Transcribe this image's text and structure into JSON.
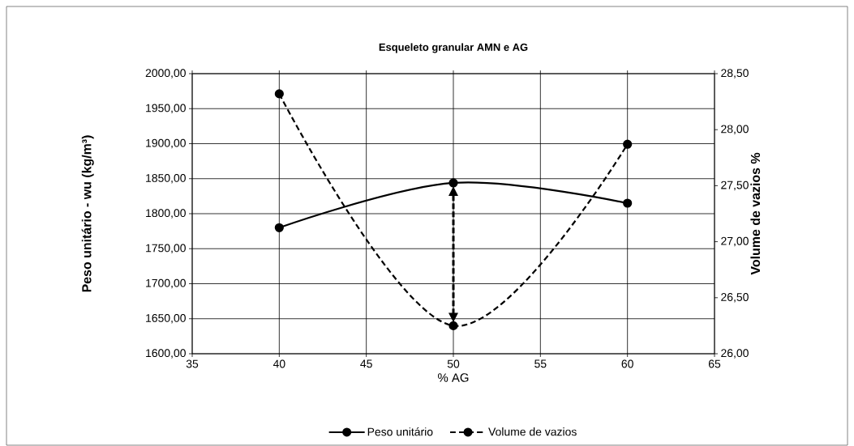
{
  "chart_data": {
    "type": "line",
    "title": "Esqueleto granular AMN e AG",
    "xlabel": "% AG",
    "ylabel": "Peso unitário - wu (kg/m³)",
    "y2label": "Volume de vazios %",
    "x": [
      40,
      50,
      60
    ],
    "series": [
      {
        "name": "Peso unitário",
        "color": "#000000",
        "values": [
          1780,
          1844,
          1815
        ],
        "line_style": "solid"
      },
      {
        "name": "Volume de vazios",
        "color": "#000000",
        "values": [
          28.32,
          26.25,
          27.87
        ],
        "axis": "y2",
        "line_style": "dashed"
      }
    ],
    "xlim": [
      35,
      65
    ],
    "xticks": [
      35,
      40,
      45,
      50,
      55,
      60,
      65
    ],
    "ylim": [
      1600,
      2000
    ],
    "yticks": [
      {
        "value": 1600,
        "label": "1600,00"
      },
      {
        "value": 1650,
        "label": "1650,00"
      },
      {
        "value": 1700,
        "label": "1700,00"
      },
      {
        "value": 1750,
        "label": "1750,00"
      },
      {
        "value": 1800,
        "label": "1800,00"
      },
      {
        "value": 1850,
        "label": "1850,00"
      },
      {
        "value": 1900,
        "label": "1900,00"
      },
      {
        "value": 1950,
        "label": "1950,00"
      },
      {
        "value": 2000,
        "label": "2000,00"
      }
    ],
    "y2lim": [
      26,
      28.5
    ],
    "y2ticks": [
      {
        "value": 26,
        "label": "26,00"
      },
      {
        "value": 26.5,
        "label": "26,50"
      },
      {
        "value": 27,
        "label": "27,00"
      },
      {
        "value": 27.5,
        "label": "27,50"
      },
      {
        "value": 28,
        "label": "28,00"
      },
      {
        "value": 28.5,
        "label": "28,50"
      }
    ],
    "grid": true,
    "legend": "bottom",
    "marker": "circle"
  }
}
